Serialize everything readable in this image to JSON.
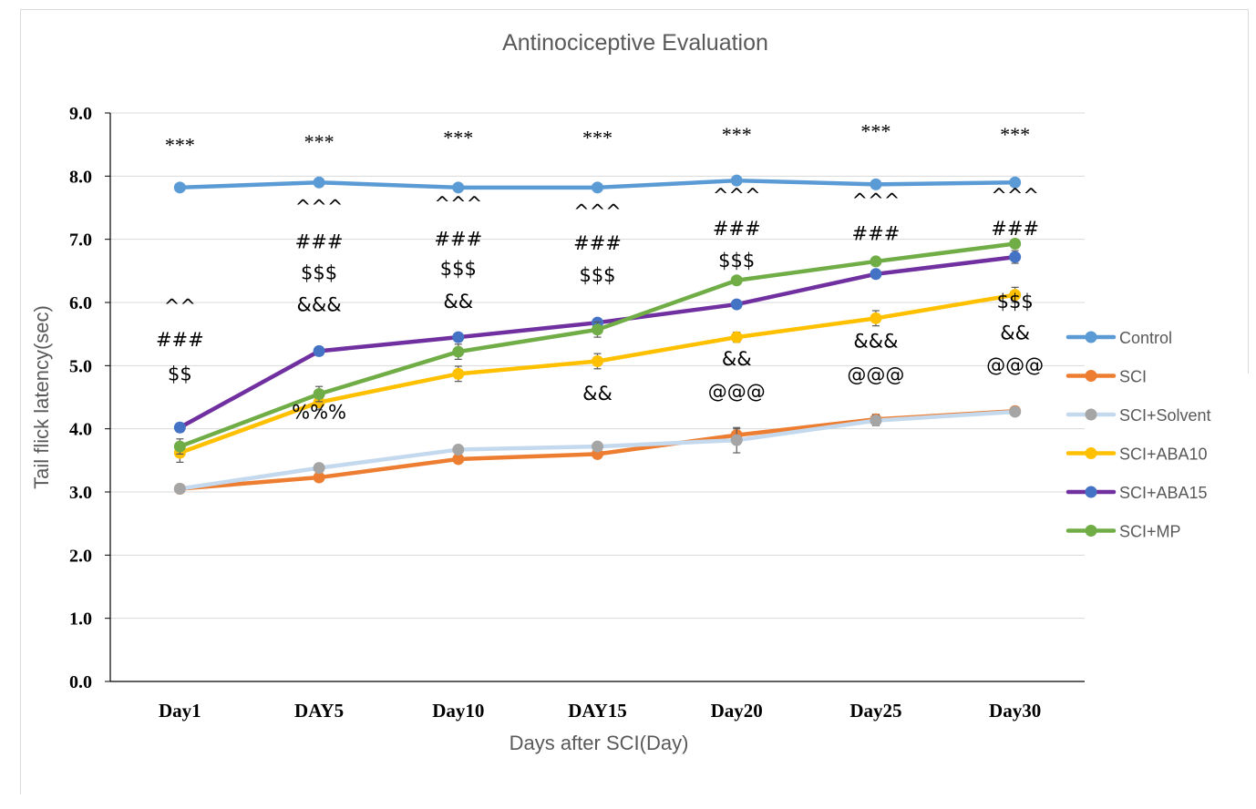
{
  "chart_data": {
    "type": "line",
    "title": "Antinociceptive Evaluation",
    "xlabel": "Days after SCI(Day)",
    "ylabel": "Tail flick latency(sec)",
    "categories": [
      "Day1",
      "DAY5",
      "Day10",
      "DAY15",
      "Day20",
      "Day25",
      "Day30"
    ],
    "ylim": [
      0,
      9
    ],
    "yticks": [
      "0.0",
      "1.0",
      "2.0",
      "3.0",
      "4.0",
      "5.0",
      "6.0",
      "7.0",
      "8.0",
      "9.0"
    ],
    "grid": "horizontal",
    "legend": "right",
    "series": [
      {
        "name": "Control",
        "color": "#5b9bd5",
        "values": [
          7.82,
          7.9,
          7.82,
          7.82,
          7.93,
          7.87,
          7.9
        ],
        "err": [
          0.04,
          0.04,
          0.05,
          0.04,
          0.04,
          0.04,
          0.04
        ]
      },
      {
        "name": "SCI",
        "color": "#ed7d31",
        "values": [
          3.05,
          3.23,
          3.52,
          3.6,
          3.9,
          4.15,
          4.28
        ],
        "err": [
          0.03,
          0.05,
          0.06,
          0.05,
          0.1,
          0.08,
          0.04
        ]
      },
      {
        "name": "SCI+Solvent",
        "color": "#c5d9ee",
        "markerColor": "#a5a5a5",
        "values": [
          3.05,
          3.38,
          3.67,
          3.72,
          3.82,
          4.13,
          4.27
        ],
        "err": [
          0.04,
          0.05,
          0.06,
          0.06,
          0.2,
          0.08,
          0.05
        ]
      },
      {
        "name": "SCI+ABA10",
        "color": "#ffc000",
        "values": [
          3.62,
          4.42,
          4.87,
          5.07,
          5.45,
          5.75,
          6.12
        ],
        "err": [
          0.15,
          0.12,
          0.12,
          0.12,
          0.08,
          0.12,
          0.12
        ]
      },
      {
        "name": "SCI+ABA15",
        "color": "#7030a0",
        "markerColor": "#4472c4",
        "values": [
          4.02,
          5.23,
          5.45,
          5.68,
          5.97,
          6.45,
          6.72
        ],
        "err": [
          0.07,
          0.07,
          0.05,
          0.05,
          0.05,
          0.06,
          0.1
        ]
      },
      {
        "name": "SCI+MP",
        "color": "#70ad47",
        "values": [
          3.72,
          4.55,
          5.22,
          5.57,
          6.35,
          6.65,
          6.93
        ],
        "err": [
          0.12,
          0.12,
          0.12,
          0.12,
          0.05,
          0.06,
          0.06
        ]
      }
    ],
    "annotations": [
      {
        "category": "Day1",
        "y": 8.5,
        "text": "***",
        "kind": "star"
      },
      {
        "category": "Day1",
        "y": 5.95,
        "text": "^^"
      },
      {
        "category": "Day1",
        "y": 5.42,
        "text": "###"
      },
      {
        "category": "Day1",
        "y": 4.88,
        "text": "$$"
      },
      {
        "category": "DAY5",
        "y": 8.55,
        "text": "***",
        "kind": "star"
      },
      {
        "category": "DAY5",
        "y": 7.52,
        "text": "^^^"
      },
      {
        "category": "DAY5",
        "y": 6.97,
        "text": "###"
      },
      {
        "category": "DAY5",
        "y": 6.48,
        "text": "$$$"
      },
      {
        "category": "DAY5",
        "y": 5.98,
        "text": "&&&"
      },
      {
        "category": "DAY5",
        "y": 4.28,
        "text": "%%%"
      },
      {
        "category": "Day10",
        "y": 8.62,
        "text": "***",
        "kind": "star"
      },
      {
        "category": "Day10",
        "y": 7.57,
        "text": "^^^"
      },
      {
        "category": "Day10",
        "y": 7.02,
        "text": "###"
      },
      {
        "category": "Day10",
        "y": 6.55,
        "text": "$$$"
      },
      {
        "category": "Day10",
        "y": 6.03,
        "text": "&&"
      },
      {
        "category": "DAY15",
        "y": 8.62,
        "text": "***",
        "kind": "star"
      },
      {
        "category": "DAY15",
        "y": 7.45,
        "text": "^^^"
      },
      {
        "category": "DAY15",
        "y": 6.95,
        "text": "###"
      },
      {
        "category": "DAY15",
        "y": 6.45,
        "text": "$$$"
      },
      {
        "category": "DAY15",
        "y": 4.57,
        "text": "&&"
      },
      {
        "category": "Day20",
        "y": 8.67,
        "text": "***",
        "kind": "star"
      },
      {
        "category": "Day20",
        "y": 7.7,
        "text": "^^^"
      },
      {
        "category": "Day20",
        "y": 7.18,
        "text": "###"
      },
      {
        "category": "Day20",
        "y": 6.68,
        "text": "$$$"
      },
      {
        "category": "Day20",
        "y": 5.12,
        "text": "&&"
      },
      {
        "category": "Day20",
        "y": 4.6,
        "text": "@@@"
      },
      {
        "category": "Day25",
        "y": 8.72,
        "text": "***",
        "kind": "star"
      },
      {
        "category": "Day25",
        "y": 7.62,
        "text": "^^^"
      },
      {
        "category": "Day25",
        "y": 7.1,
        "text": "###"
      },
      {
        "category": "Day25",
        "y": 5.4,
        "text": "&&&"
      },
      {
        "category": "Day25",
        "y": 4.87,
        "text": "@@@"
      },
      {
        "category": "Day30",
        "y": 8.67,
        "text": "***",
        "kind": "star"
      },
      {
        "category": "Day30",
        "y": 7.7,
        "text": "^^^"
      },
      {
        "category": "Day30",
        "y": 7.18,
        "text": "###"
      },
      {
        "category": "Day30",
        "y": 6.03,
        "text": "$$$"
      },
      {
        "category": "Day30",
        "y": 5.53,
        "text": "&&"
      },
      {
        "category": "Day30",
        "y": 5.02,
        "text": "@@@"
      }
    ]
  }
}
